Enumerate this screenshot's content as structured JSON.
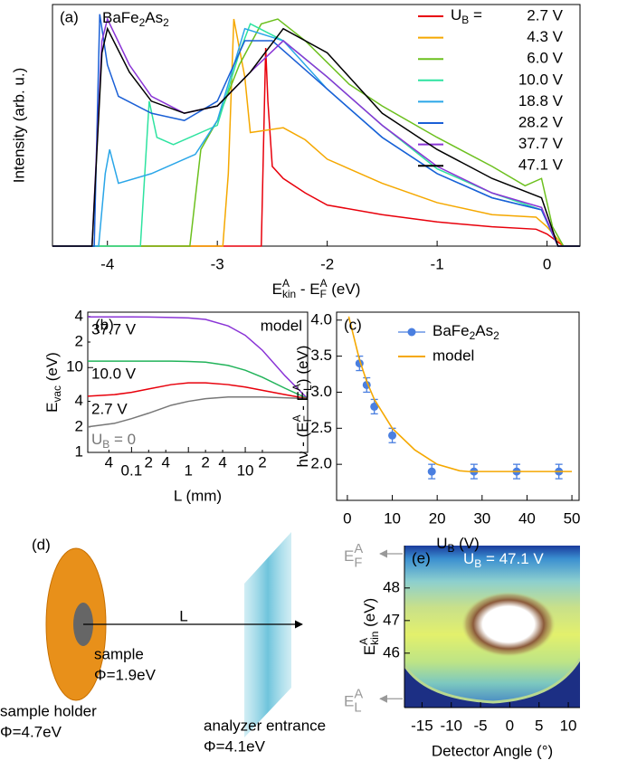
{
  "chart_data": [
    {
      "type": "line",
      "panel": "(a)",
      "annotation": [
        {
          "t": "BaFe"
        },
        {
          "sub": "2"
        },
        {
          "t": "As"
        },
        {
          "sub": "2"
        }
      ],
      "xlabel": [
        {
          "t": "E"
        },
        {
          "sup": "A"
        },
        {
          "sub": "kin"
        },
        {
          "t": " - E"
        },
        {
          "sup": "A"
        },
        {
          "sub": "F"
        },
        {
          "t": " (eV)"
        }
      ],
      "ylabel": "Intensity (arb. u.)",
      "xlim": [
        -4.5,
        0.3
      ],
      "ylim": [
        0,
        1
      ],
      "xticks": [
        -4,
        -3,
        -2,
        -1,
        0
      ],
      "legend": "upper right",
      "legend_prefix": [
        {
          "t": "U"
        },
        {
          "sub": "B"
        },
        {
          "t": " ="
        }
      ],
      "series": [
        {
          "name": "2.7 V",
          "color": "#e8000b",
          "x": [
            -4.5,
            -2.6,
            -2.56,
            -2.54,
            -2.5,
            -2.4,
            -2.2,
            -2.0,
            -1.5,
            -1.0,
            -0.5,
            -0.1,
            0.0,
            0.15,
            0.3
          ],
          "values": [
            0,
            0,
            0.82,
            0.6,
            0.33,
            0.28,
            0.22,
            0.17,
            0.13,
            0.1,
            0.08,
            0.07,
            0.05,
            0,
            0
          ]
        },
        {
          "name": "4.3 V",
          "color": "#f5a800",
          "x": [
            -4.5,
            -2.95,
            -2.9,
            -2.85,
            -2.75,
            -2.7,
            -2.4,
            -2.2,
            -2.0,
            -1.5,
            -1.0,
            -0.5,
            -0.1,
            0,
            0.15,
            0.3
          ],
          "values": [
            0,
            0,
            0.3,
            0.94,
            0.7,
            0.47,
            0.49,
            0.44,
            0.36,
            0.26,
            0.18,
            0.13,
            0.12,
            0.08,
            0,
            0
          ]
        },
        {
          "name": "6.0 V",
          "color": "#6cc01e",
          "x": [
            -4.5,
            -3.25,
            -3.15,
            -3.0,
            -2.8,
            -2.6,
            -2.45,
            -2.2,
            -1.8,
            -1.5,
            -1.0,
            -0.5,
            -0.2,
            -0.05,
            0.05,
            0.15,
            0.3
          ],
          "values": [
            0,
            0,
            0.4,
            0.52,
            0.75,
            0.92,
            0.94,
            0.85,
            0.67,
            0.58,
            0.45,
            0.33,
            0.25,
            0.28,
            0.08,
            0,
            0
          ]
        },
        {
          "name": "10.0 V",
          "color": "#2ee3a0",
          "x": [
            -4.5,
            -3.7,
            -3.62,
            -3.55,
            -3.4,
            -3.0,
            -2.8,
            -2.7,
            -2.4,
            -2.0,
            -1.5,
            -1.0,
            -0.5,
            -0.05,
            0.1,
            0.3
          ],
          "values": [
            0,
            0,
            0.6,
            0.45,
            0.42,
            0.5,
            0.8,
            0.92,
            0.85,
            0.7,
            0.5,
            0.32,
            0.22,
            0.15,
            0,
            0
          ]
        },
        {
          "name": "18.8 V",
          "color": "#2aa6e8",
          "x": [
            -4.5,
            -4.08,
            -4.02,
            -3.98,
            -3.9,
            -3.6,
            -3.2,
            -3.0,
            -2.75,
            -2.4,
            -2.0,
            -1.5,
            -1.0,
            -0.5,
            -0.05,
            0.1,
            0.3
          ],
          "values": [
            0,
            0,
            0.3,
            0.4,
            0.26,
            0.3,
            0.38,
            0.52,
            0.9,
            0.85,
            0.65,
            0.45,
            0.3,
            0.2,
            0.15,
            0,
            0
          ]
        },
        {
          "name": "28.2 V",
          "color": "#1a5fd6",
          "x": [
            -4.5,
            -4.12,
            -4.07,
            -4.0,
            -3.9,
            -3.6,
            -3.3,
            -3.0,
            -2.75,
            -2.5,
            -2.0,
            -1.5,
            -1.0,
            -0.5,
            -0.05,
            0.1,
            0.3
          ],
          "values": [
            0,
            0,
            0.96,
            0.75,
            0.62,
            0.55,
            0.52,
            0.6,
            0.85,
            0.85,
            0.65,
            0.45,
            0.3,
            0.2,
            0.15,
            0,
            0
          ]
        },
        {
          "name": "37.7 V",
          "color": "#8a34d6",
          "x": [
            -4.5,
            -4.14,
            -4.05,
            -4.0,
            -3.8,
            -3.6,
            -3.3,
            -3.0,
            -2.7,
            -2.4,
            -2.0,
            -1.5,
            -1.0,
            -0.5,
            -0.05,
            0.1,
            0.3
          ],
          "values": [
            0,
            0,
            0.85,
            0.94,
            0.75,
            0.62,
            0.55,
            0.58,
            0.72,
            0.85,
            0.7,
            0.5,
            0.33,
            0.22,
            0.16,
            0,
            0
          ]
        },
        {
          "name": "47.1 V",
          "color": "#000000",
          "x": [
            -4.5,
            -4.14,
            -4.05,
            -4.0,
            -3.8,
            -3.6,
            -3.3,
            -3.0,
            -2.7,
            -2.4,
            -2.0,
            -1.5,
            -1.0,
            -0.5,
            -0.05,
            0.1,
            0.3
          ],
          "values": [
            0,
            0,
            0.8,
            0.9,
            0.72,
            0.6,
            0.55,
            0.58,
            0.72,
            0.9,
            0.8,
            0.55,
            0.4,
            0.28,
            0.2,
            0,
            0
          ]
        }
      ]
    },
    {
      "type": "line",
      "panel": "(b)",
      "annotation": "model",
      "xlabel": "L (mm)",
      "ylabel": [
        {
          "t": "E"
        },
        {
          "sub": "vac"
        },
        {
          "t": " (eV)"
        }
      ],
      "xscale": "log",
      "yscale": "log",
      "xlim": [
        0.017,
        125
      ],
      "ylim": [
        1,
        45
      ],
      "xticks": [
        0.1,
        1,
        10
      ],
      "xticks_minor": [
        {
          "value": 0.04,
          "label": "4"
        },
        {
          "value": 0.2,
          "label": "2"
        },
        {
          "value": 0.4,
          "label": "4"
        },
        2,
        4,
        {
          "value": 20,
          "label": "2"
        }
      ],
      "yticks": [
        1,
        10
      ],
      "yticks_minor": [
        2,
        4,
        {
          "value": 20,
          "label": "2"
        },
        {
          "value": 40,
          "label": "4"
        }
      ],
      "legend": "inline",
      "x": [
        0.017,
        0.05,
        0.1,
        0.2,
        0.5,
        1,
        2,
        5,
        10,
        20,
        50,
        125
      ],
      "series": [
        {
          "name": "37.7 V",
          "color": "#8a34d6",
          "values": [
            39.6,
            39.6,
            39.5,
            39.4,
            39,
            38.5,
            37,
            31,
            24,
            16,
            8,
            4.3
          ]
        },
        {
          "name": "10.0 V",
          "color": "#22b35a",
          "values": [
            11.9,
            11.9,
            11.9,
            11.9,
            11.9,
            11.8,
            11.6,
            10.6,
            9.3,
            7.7,
            5.7,
            4.3
          ]
        },
        {
          "name": "2.7 V",
          "color": "#e8000b",
          "values": [
            4.6,
            4.8,
            5.1,
            5.6,
            6.3,
            6.6,
            6.6,
            6.3,
            5.9,
            5.4,
            4.8,
            4.3
          ]
        },
        {
          "name": [
            {
              "t": "U"
            },
            {
              "sub": "B"
            },
            {
              "t": " = 0"
            }
          ],
          "color": "#777777",
          "values": [
            2.0,
            2.2,
            2.5,
            2.9,
            3.6,
            4.0,
            4.3,
            4.5,
            4.5,
            4.5,
            4.4,
            4.3
          ]
        }
      ]
    },
    {
      "type": "scatter",
      "panel": "(c)",
      "xlabel": [
        {
          "t": "U"
        },
        {
          "sub": "B"
        },
        {
          "t": " (V)"
        }
      ],
      "ylabel": [
        {
          "t": "hν - (E"
        },
        {
          "sup": "A"
        },
        {
          "sub": "F"
        },
        {
          "t": " - E"
        },
        {
          "sup": "A"
        },
        {
          "sub": "L"
        },
        {
          "t": ") (eV)"
        }
      ],
      "xlim": [
        -2.4,
        51.6
      ],
      "ylim": [
        1.5,
        4.11
      ],
      "xticks": [
        0,
        10,
        20,
        30,
        40,
        50
      ],
      "yticks": [
        {
          "value": 2,
          "label": "2.0"
        },
        2.5,
        {
          "value": 3,
          "label": "3.0"
        },
        3.5,
        {
          "value": 4,
          "label": "4.0"
        }
      ],
      "legend": "upper right",
      "series": [
        {
          "name": [
            {
              "t": "BaFe"
            },
            {
              "sub": "2"
            },
            {
              "t": "As"
            },
            {
              "sub": "2"
            }
          ],
          "color": "#4a7fe0",
          "type": "scatter",
          "x": [
            2.7,
            4.3,
            6.0,
            10.0,
            18.8,
            28.2,
            37.7,
            47.1
          ],
          "values": [
            3.4,
            3.1,
            2.8,
            2.4,
            1.9,
            1.9,
            1.9,
            1.9
          ],
          "errors": [
            0.1,
            0.1,
            0.1,
            0.1,
            0.1,
            0.1,
            0.1,
            0.1
          ]
        },
        {
          "name": "model",
          "color": "#f5a800",
          "type": "line",
          "x": [
            0.3,
            2.7,
            4.3,
            6,
            10,
            15,
            20,
            25,
            27,
            30,
            40,
            50
          ],
          "values": [
            4.05,
            3.45,
            3.15,
            2.9,
            2.5,
            2.2,
            2.0,
            1.91,
            1.9,
            1.9,
            1.9,
            1.9
          ]
        }
      ]
    },
    {
      "type": "image",
      "panel": "(e)",
      "annotation": [
        {
          "t": "U"
        },
        {
          "sub": "B"
        },
        {
          "t": " =  47.1 V"
        }
      ],
      "xlabel": "Detector Angle (°)",
      "ylabel": [
        {
          "t": "E"
        },
        {
          "sup": "A"
        },
        {
          "sub": "kin"
        },
        {
          "t": " (eV)"
        }
      ],
      "xlim": [
        -18,
        12
      ],
      "ylim": [
        44.33,
        49.3
      ],
      "xticks": [
        -15,
        -10,
        -5,
        0,
        5,
        10
      ],
      "yticks": [
        46,
        47,
        48
      ],
      "markers": [
        {
          "label": [
            {
              "t": "E"
            },
            {
              "sup": "A"
            },
            {
              "sub": "F"
            }
          ],
          "value": 49.05
        },
        {
          "label": [
            {
              "t": "E"
            },
            {
              "sup": "A"
            },
            {
              "sub": "L"
            }
          ],
          "value": 44.6
        }
      ]
    }
  ],
  "diagram": {
    "panel": "(d)",
    "distance_label": "L",
    "sample": {
      "label": "sample",
      "work_function": "Φ=1.9eV"
    },
    "holder": {
      "label": "sample holder",
      "work_function": "Φ=4.7eV"
    },
    "analyzer": {
      "label": "analyzer entrance",
      "work_function": "Φ=4.1eV"
    }
  }
}
